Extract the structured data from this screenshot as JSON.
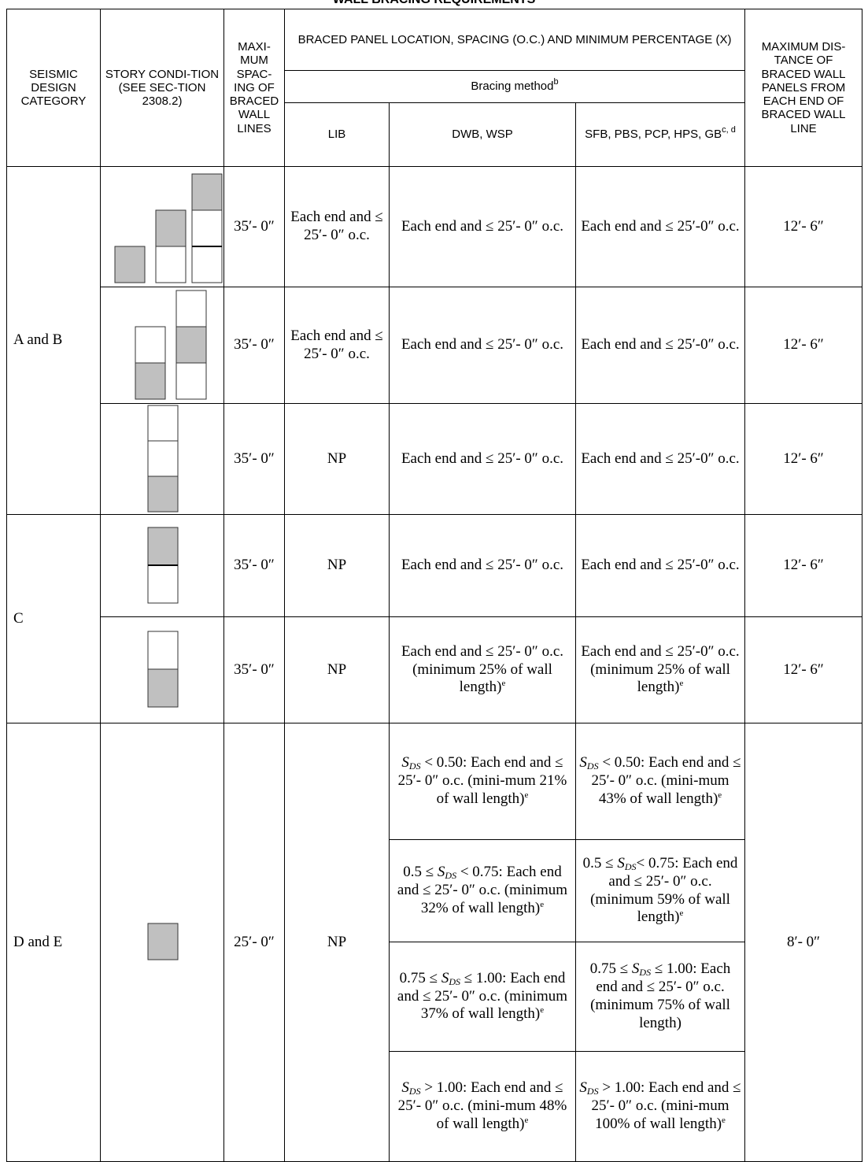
{
  "title": "WALL BRACING REQUIREMENTS",
  "header": {
    "seismic": "SEISMIC DESIGN CATEGORY",
    "story": "STORY CONDI-TION (SEE SEC-TION 2308.2)",
    "max_spacing": "MAXI-MUM SPAC-ING OF BRACED WALL LINES",
    "braced_panel": "BRACED PANEL LOCATION, SPACING (O.C.) AND MINIMUM PERCENTAGE (X)",
    "bracing_method": {
      "text": "Bracing method",
      "note": "b"
    },
    "lib": "LIB",
    "dwb": "DWB, WSP",
    "sfb": {
      "text": "SFB, PBS, PCP, HPS, GB",
      "note": "c, d"
    },
    "max_distance": "MAXIMUM DIS-TANCE OF BRACED WALL PANELS FROM EACH END OF BRACED WALL LINE"
  },
  "rows": [
    {
      "category": "A and B",
      "spacing": "35′- 0″",
      "lib": "Each end and ≤ 25′- 0″ o.c.",
      "dwb": {
        "text": "Each end and ≤ 25′- 0″ o.c."
      },
      "sfb": {
        "text": "Each end and ≤ 25′-0″ o.c."
      },
      "distance": "12′- 6″"
    },
    {
      "spacing": "35′- 0″",
      "lib": "Each end and ≤ 25′- 0″ o.c.",
      "dwb": {
        "text": "Each end and ≤ 25′- 0″ o.c."
      },
      "sfb": {
        "text": "Each end and ≤ 25′-0″ o.c."
      },
      "distance": "12′- 6″"
    },
    {
      "spacing": "35′- 0″",
      "lib": "NP",
      "dwb": {
        "text": "Each end and ≤ 25′- 0″ o.c."
      },
      "sfb": {
        "text": "Each end and ≤ 25′-0″ o.c."
      },
      "distance": "12′- 6″"
    },
    {
      "category": "C",
      "spacing": "35′- 0″",
      "lib": "NP",
      "dwb": {
        "text": "Each end and ≤ 25′- 0″ o.c."
      },
      "sfb": {
        "text": "Each end and ≤ 25′-0″ o.c."
      },
      "distance": "12′- 6″"
    },
    {
      "spacing": "35′- 0″",
      "lib": "NP",
      "dwb": {
        "text": "Each end and ≤ 25′- 0″ o.c. (minimum 25% of wall length)",
        "note": "e"
      },
      "sfb": {
        "text": "Each end and ≤ 25′-0″ o.c. (minimum 25% of wall length)",
        "note": "e"
      },
      "distance": "12′- 6″"
    },
    {
      "category": "D and E",
      "spacing": "25′- 0″",
      "lib": "NP",
      "distance": "8′- 0″",
      "dwb": [
        {
          "symbol": "S",
          "sub": "DS",
          "after": " < 0.50: Each end and ≤ 25′- 0″ o.c. (mini-mum 21% of wall length)",
          "note": "e"
        },
        {
          "before": "0.5 ≤ ",
          "symbol": "S",
          "sub": "DS",
          "after": " < 0.75: Each end and ≤ 25′- 0″ o.c. (minimum 32% of wall length)",
          "note": "e"
        },
        {
          "before": "0.75 ≤ ",
          "symbol": "S",
          "sub": "DS",
          "after": " ≤ 1.00: Each end and ≤ 25′- 0″ o.c. (minimum 37% of wall length)",
          "note": "e"
        },
        {
          "symbol": "S",
          "sub": "DS",
          "after": " > 1.00: Each end and ≤ 25′- 0″ o.c. (mini-mum 48% of wall length)",
          "note": "e"
        }
      ],
      "sfb": [
        {
          "symbol": "S",
          "sub": "DS",
          "after": " < 0.50: Each end and ≤ 25′- 0″ o.c. (mini-mum 43% of wall length)",
          "note": "e"
        },
        {
          "before": "0.5 ≤ ",
          "symbol": "S",
          "sub": "DS",
          "after": "< 0.75: Each end and ≤ 25′- 0″ o.c. (minimum 59% of wall length)",
          "note": "e"
        },
        {
          "before": "0.75 ≤ ",
          "symbol": "S",
          "sub": "DS",
          "after": " ≤ 1.00: Each end and ≤ 25′- 0″ o.c. (minimum 75% of wall length)"
        },
        {
          "symbol": "S",
          "sub": "DS",
          "after": " > 1.00: Each end and ≤ 25′- 0″ o.c. (mini-mum 100% of wall length)",
          "note": "e"
        }
      ]
    }
  ]
}
